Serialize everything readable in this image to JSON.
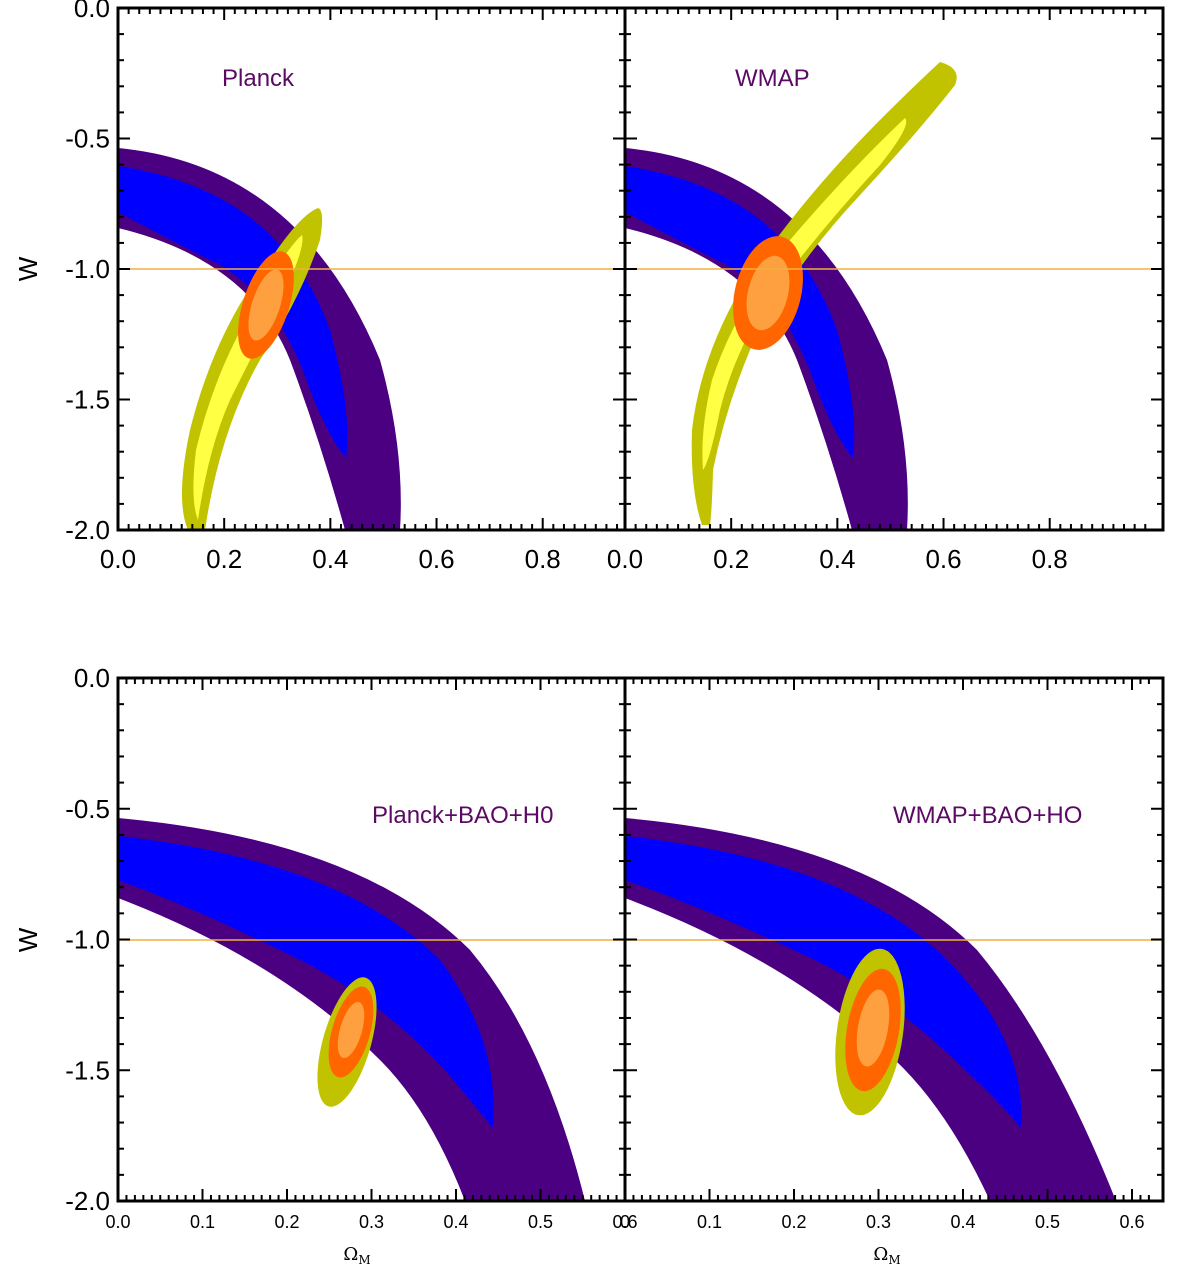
{
  "figure": {
    "ylabel": "W",
    "xlabel": "ΩM"
  },
  "colors": {
    "sn_outer": "#4b0082",
    "sn_inner": "#0000fe",
    "cmb_outer": "#c2c300",
    "cmb_inner": "#ffff44",
    "comb_outer": "#ff6600",
    "comb_inner": "#ffa040",
    "reference_line": "#f0b040",
    "label_text": "#5a0a63"
  },
  "chart_data": [
    {
      "type": "contour",
      "label": "Planck",
      "xlim": [
        0,
        1.0
      ],
      "ylim": [
        -2.0,
        0.0
      ],
      "xticks": [
        "0.0",
        "0.2",
        "0.4",
        "0.6",
        "0.8"
      ],
      "yticks": [
        "0.0",
        "-0.5",
        "-1.0",
        "-1.5",
        "-2.0"
      ],
      "reference_line_w": -1.0,
      "contours": {
        "sn_2sigma": {
          "left_edge_w_at_0": [
            -0.53,
            -0.84
          ],
          "bottom_om_at_w_minus2": [
            0.44,
            0.55
          ]
        },
        "sn_1sigma": {
          "left_edge_w_at_0": [
            -0.6,
            -0.77
          ],
          "tip": [
            0.44,
            -1.72
          ]
        },
        "cmb_2sigma": {
          "top": [
            0.38,
            -0.77
          ],
          "bottom_om": [
            0.14,
            0.17
          ]
        },
        "combined_center": [
          0.29,
          -1.15
        ]
      }
    },
    {
      "type": "contour",
      "label": "WMAP",
      "xlim": [
        0,
        1.0
      ],
      "ylim": [
        -2.0,
        0.0
      ],
      "xticks": [
        "0.0",
        "0.2",
        "0.4",
        "0.6",
        "0.8"
      ],
      "yticks": [],
      "reference_line_w": -1.0,
      "contours": {
        "cmb_2sigma": {
          "top": [
            0.6,
            -0.22
          ],
          "bottom_om": [
            0.13,
            0.16
          ]
        },
        "combined_center": [
          0.26,
          -1.1
        ]
      }
    },
    {
      "type": "contour",
      "label": "Planck+BAO+H0",
      "xlim": [
        0,
        0.6
      ],
      "ylim": [
        -2.0,
        0.0
      ],
      "xticks": [
        "0.0",
        "0.1",
        "0.2",
        "0.3",
        "0.4",
        "0.5",
        "0.6"
      ],
      "yticks": [
        "0.0",
        "-0.5",
        "-1.0",
        "-1.5",
        "-2.0"
      ],
      "reference_line_w": -1.0,
      "contours": {
        "combined_center": [
          0.275,
          -1.18
        ]
      }
    },
    {
      "type": "contour",
      "label": "WMAP+BAO+HO",
      "xlim": [
        0,
        0.6
      ],
      "ylim": [
        -2.0,
        0.0
      ],
      "xticks": [
        "0",
        "0.1",
        "0.2",
        "0.3",
        "0.4",
        "0.5",
        "0.6"
      ],
      "yticks": [],
      "reference_line_w": -1.0,
      "contours": {
        "combined_center": [
          0.28,
          -1.16
        ]
      }
    }
  ]
}
